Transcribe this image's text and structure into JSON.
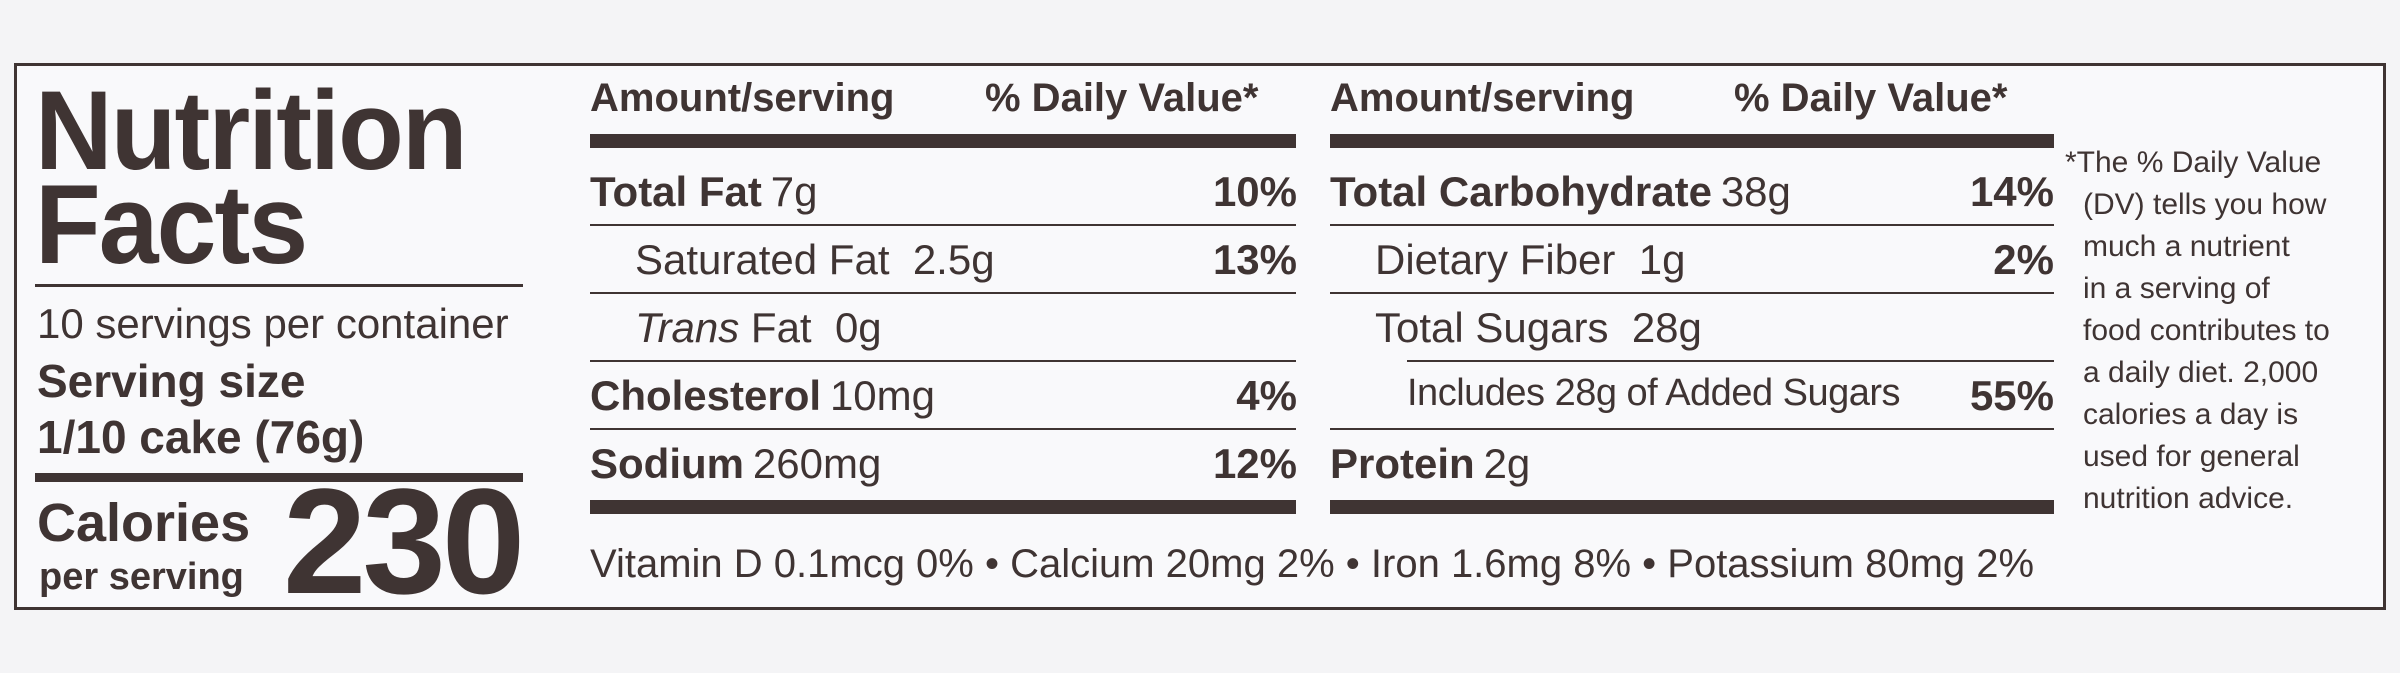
{
  "title_line1": "Nutrition",
  "title_line2": "Facts",
  "servings_per_container": "10 servings per container",
  "serving_size_label": "Serving size",
  "serving_size_value": "1/10 cake (76g)",
  "calories_label": "Calories",
  "calories_sub": "per serving",
  "calories_value": "230",
  "left_table": {
    "header_amount": "Amount/serving",
    "header_dv": "% Daily Value*",
    "rows": [
      {
        "name": "Total Fat",
        "amount": "7g",
        "dv": "10%"
      },
      {
        "name": "Saturated Fat",
        "amount": "2.5g",
        "dv": "13%"
      },
      {
        "name_italic": "Trans",
        "name_rest": "Fat",
        "amount": "0g",
        "dv": ""
      },
      {
        "name": "Cholesterol",
        "amount": "10mg",
        "dv": "4%"
      },
      {
        "name": "Sodium",
        "amount": "260mg",
        "dv": "12%"
      }
    ]
  },
  "right_table": {
    "header_amount": "Amount/serving",
    "header_dv": "% Daily Value*",
    "rows": [
      {
        "name": "Total Carbohydrate",
        "amount": "38g",
        "dv": "14%"
      },
      {
        "name": "Dietary Fiber",
        "amount": "1g",
        "dv": "2%"
      },
      {
        "name": "Total Sugars",
        "amount": "28g",
        "dv": ""
      },
      {
        "name": "Includes 28g of Added Sugars",
        "amount": "",
        "dv": "55%"
      },
      {
        "name": "Protein",
        "amount": "2g",
        "dv": ""
      }
    ]
  },
  "vitamins": "Vitamin D 0.1mcg 0% • Calcium 20mg 2% • Iron 1.6mg 8% • Potassium 80mg 2%",
  "footnote_lines": [
    "*The % Daily Value",
    "(DV) tells you how",
    "much a nutrient",
    "in a serving of",
    "food contributes to",
    "a daily diet. 2,000",
    "calories a day is",
    "used for general",
    "nutrition advice."
  ],
  "colors": {
    "ink": "#3f3433",
    "paper": "#f9f9fb",
    "background": "#f4f4f6"
  }
}
